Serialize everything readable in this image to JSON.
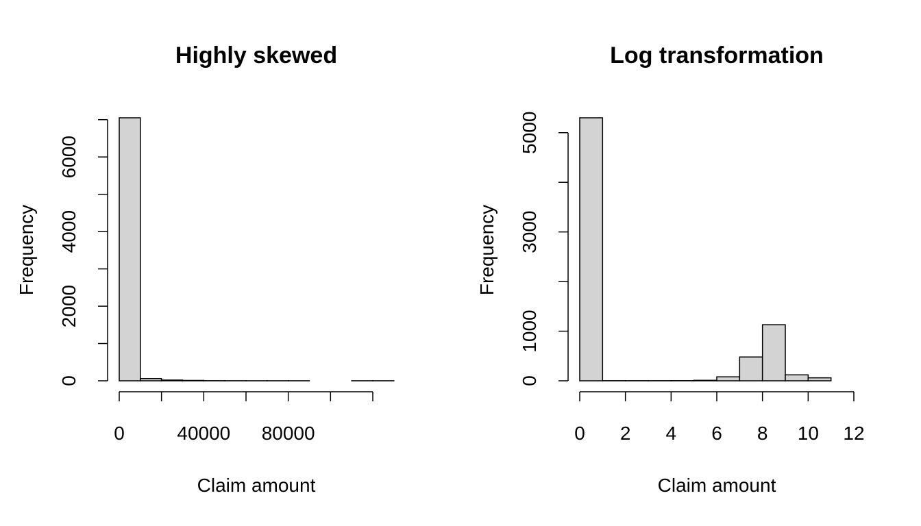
{
  "chart_data": [
    {
      "type": "bar",
      "title": "Highly skewed",
      "xlabel": "Claim amount",
      "ylabel": "Frequency",
      "xlim": [
        0,
        120000
      ],
      "ylim": [
        0,
        7050
      ],
      "bin_width": 10000,
      "bins": [
        {
          "start": 0,
          "end": 10000,
          "count": 7050
        },
        {
          "start": 10000,
          "end": 20000,
          "count": 60
        },
        {
          "start": 20000,
          "end": 30000,
          "count": 20
        },
        {
          "start": 30000,
          "end": 40000,
          "count": 10
        },
        {
          "start": 40000,
          "end": 50000,
          "count": 3
        },
        {
          "start": 50000,
          "end": 60000,
          "count": 2
        },
        {
          "start": 60000,
          "end": 70000,
          "count": 1
        },
        {
          "start": 70000,
          "end": 80000,
          "count": 1
        },
        {
          "start": 80000,
          "end": 90000,
          "count": 1
        },
        {
          "start": 90000,
          "end": 100000,
          "count": 0
        },
        {
          "start": 100000,
          "end": 110000,
          "count": 0
        },
        {
          "start": 110000,
          "end": 120000,
          "count": 1
        },
        {
          "start": 120000,
          "end": 130000,
          "count": 1
        }
      ],
      "x_ticks": [
        0,
        20000,
        40000,
        60000,
        80000,
        100000,
        120000
      ],
      "x_tick_labels": [
        "0",
        "",
        "40000",
        "",
        "80000",
        "",
        ""
      ],
      "y_ticks": [
        0,
        1000,
        2000,
        3000,
        4000,
        5000,
        6000,
        7000
      ],
      "y_tick_labels": [
        "0",
        "",
        "2000",
        "",
        "4000",
        "",
        "6000",
        ""
      ]
    },
    {
      "type": "bar",
      "title": "Log transformation",
      "xlabel": "Claim amount",
      "ylabel": "Frequency",
      "xlim": [
        0,
        12
      ],
      "ylim": [
        0,
        5300
      ],
      "bin_width": 1,
      "bins": [
        {
          "start": 0,
          "end": 1,
          "count": 5300
        },
        {
          "start": 1,
          "end": 2,
          "count": 2
        },
        {
          "start": 2,
          "end": 3,
          "count": 2
        },
        {
          "start": 3,
          "end": 4,
          "count": 2
        },
        {
          "start": 4,
          "end": 5,
          "count": 3
        },
        {
          "start": 5,
          "end": 6,
          "count": 10
        },
        {
          "start": 6,
          "end": 7,
          "count": 80
        },
        {
          "start": 7,
          "end": 8,
          "count": 480
        },
        {
          "start": 8,
          "end": 9,
          "count": 1130
        },
        {
          "start": 9,
          "end": 10,
          "count": 120
        },
        {
          "start": 10,
          "end": 11,
          "count": 60
        }
      ],
      "x_ticks": [
        0,
        2,
        4,
        6,
        8,
        10,
        12
      ],
      "x_tick_labels": [
        "0",
        "2",
        "4",
        "6",
        "8",
        "10",
        "12"
      ],
      "y_ticks": [
        0,
        1000,
        2000,
        3000,
        4000,
        5000
      ],
      "y_tick_labels": [
        "0",
        "1000",
        "",
        "3000",
        "",
        "5000"
      ]
    }
  ]
}
